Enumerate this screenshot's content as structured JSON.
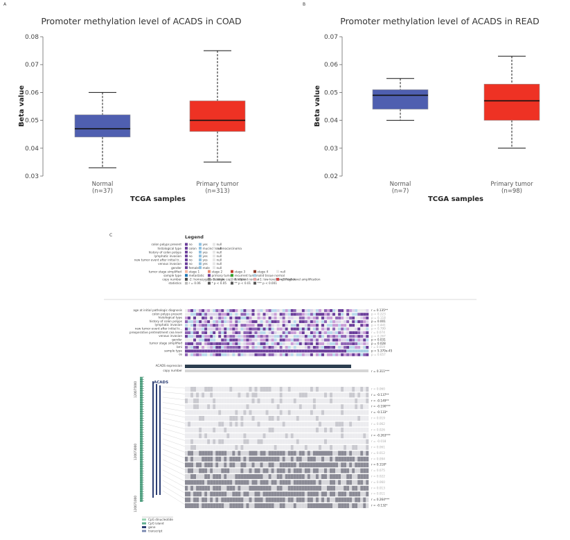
{
  "panels": {
    "a_letter": "A",
    "b_letter": "B",
    "c_letter": "C"
  },
  "chart_data": [
    {
      "type": "box",
      "title": "Promoter methylation level of ACADS in COAD",
      "xlabel": "TCGA samples",
      "ylabel": "Beta value",
      "ylim": [
        0.03,
        0.08
      ],
      "yticks": [
        "0.03",
        "0.04",
        "0.05",
        "0.06",
        "0.07",
        "0.08"
      ],
      "grid": false,
      "groups": [
        {
          "name": "Normal",
          "count": "(n=37)",
          "color": "#4f5fb0",
          "min": 0.033,
          "q1": 0.044,
          "median": 0.047,
          "q3": 0.052,
          "max": 0.06
        },
        {
          "name": "Primary tumor",
          "count": "(n=313)",
          "color": "#ee3224",
          "min": 0.035,
          "q1": 0.046,
          "median": 0.05,
          "q3": 0.057,
          "max": 0.075
        }
      ]
    },
    {
      "type": "box",
      "title": "Promoter methylation level of ACADS in READ",
      "xlabel": "TCGA samples",
      "ylabel": "Beta value",
      "ylim": [
        0.02,
        0.07
      ],
      "yticks": [
        "0.02",
        "0.03",
        "0.04",
        "0.05",
        "0.06",
        "0.07"
      ],
      "grid": false,
      "groups": [
        {
          "name": "Normal",
          "count": "(n=7)",
          "color": "#4f5fb0",
          "min": 0.04,
          "q1": 0.044,
          "median": 0.049,
          "q3": 0.051,
          "max": 0.055
        },
        {
          "name": "Primary tumor",
          "count": "(n=98)",
          "color": "#ee3224",
          "min": 0.03,
          "q1": 0.04,
          "median": 0.047,
          "q3": 0.053,
          "max": 0.063
        }
      ]
    }
  ],
  "mexpress": {
    "legend_title": "Legend",
    "legend_rows": [
      {
        "label": "colon polyps present",
        "entries": [
          "no",
          "yes",
          "null"
        ]
      },
      {
        "label": "histological type",
        "entries": [
          "colon",
          "mucinous adenocarcinoma",
          "null"
        ]
      },
      {
        "label": "history of colon polyps",
        "entries": [
          "no",
          "yes",
          "null"
        ]
      },
      {
        "label": "lymphatic invasion",
        "entries": [
          "no",
          "yes",
          "null"
        ]
      },
      {
        "label": "new tumor event after initial tr...",
        "entries": [
          "no",
          "yes",
          "null"
        ]
      },
      {
        "label": "venous invasion",
        "entries": [
          "no",
          "yes",
          "null"
        ]
      },
      {
        "label": "gender",
        "entries": [
          "female",
          "male",
          "null"
        ]
      },
      {
        "label": "tumor stage simplified",
        "entries": [
          "stage 1",
          "stage 2",
          "stage 3",
          "stage 4",
          "null"
        ]
      },
      {
        "label": "sample type",
        "entries": [
          "metastatic",
          "primary tumor",
          "recurrent tumor",
          "solid tissue normal"
        ]
      },
      {
        "label": "copy number",
        "entries": [
          "-2: homozygous deletion",
          "-1: single copy deletion",
          "0: diploid normal",
          "+1: low-level amplification",
          "+2: high-level amplification"
        ]
      },
      {
        "label": "statistics",
        "entries": [
          "r = 0.06",
          "* p < 0.05",
          "** p < 0.01",
          "*** p < 0.001"
        ]
      }
    ],
    "clinical_tracks": [
      {
        "label": "age at initial pathologic diagnosis",
        "stat": "r = 0.135**"
      },
      {
        "label": "colon polyps present",
        "stat": "p = 0.223"
      },
      {
        "label": "histological type",
        "stat": "p = 0.118"
      },
      {
        "label": "history of colon polyps",
        "stat": "p = 0.001"
      },
      {
        "label": "lymphatic invasion",
        "stat": "p = 0.441"
      },
      {
        "label": "new tumor event after initial tr...",
        "stat": "p = 0.799"
      },
      {
        "label": "preoperative pretreatment cea level",
        "stat": "r = 0.074"
      },
      {
        "label": "venous invasion",
        "stat": "p = 0.267"
      },
      {
        "label": "gender",
        "stat": "p = 0.031"
      },
      {
        "label": "tumor stage simplified",
        "stat": "p = 0.028"
      },
      {
        "label": "bmi",
        "stat": "r = 0.019"
      },
      {
        "label": "sample type",
        "stat": "p = 5.370e-45"
      },
      {
        "label": "os",
        "stat": "p = 0.657"
      }
    ],
    "expression_label": "ACADS expression",
    "copy_number_label": "copy number",
    "copy_number_stat": "r = 0.311***",
    "gene_name": "ACADS",
    "coords": [
      "120075000",
      "120073000",
      "120071000"
    ],
    "probe_stats": [
      "r = 0.060",
      "r = -0.137**",
      "r = -0.149**",
      "r = -0.190***",
      "r = -0.133*",
      "r = 0.019",
      "r = 0.062",
      "r = 0.026",
      "r = -0.263***",
      "r = -0.018",
      "r = 0.061",
      "r = 0.012",
      "r = 0.094",
      "r = 0.118*",
      "r = 0.075",
      "r = 0.022",
      "r = 0.060",
      "r = 0.013",
      "r = 0.011",
      "r = 0.264***",
      "r = -0.132*"
    ],
    "bottom_legend": [
      "CpG dinucleotide",
      "CpG island",
      "gene",
      "transcript"
    ]
  }
}
